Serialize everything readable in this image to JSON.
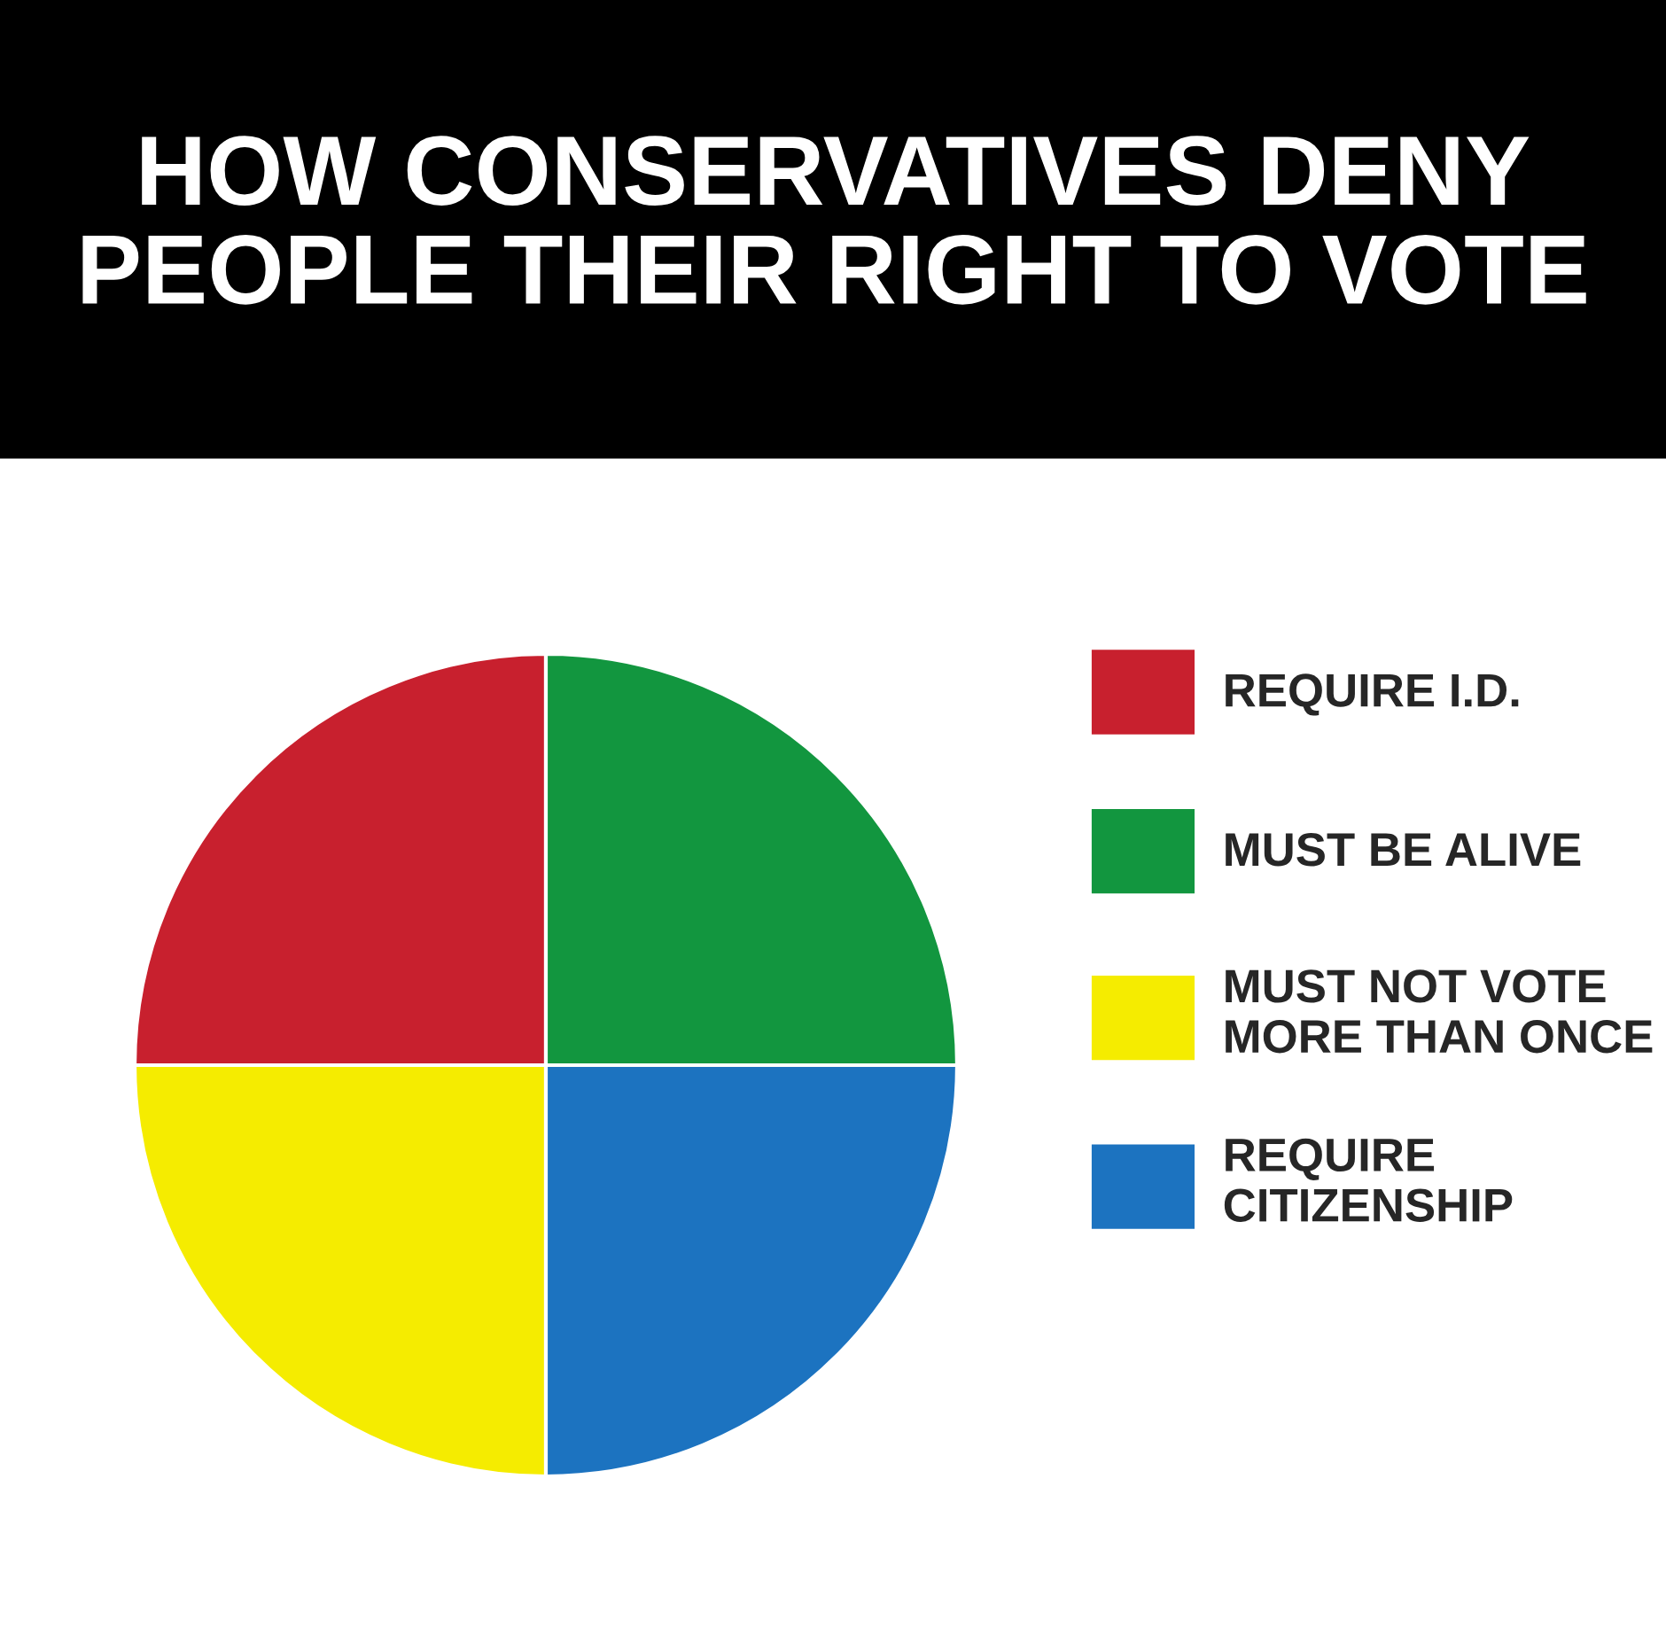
{
  "chart_data": {
    "type": "pie",
    "title": "HOW CONSERVATIVES DENY\nPEOPLE THEIR RIGHT TO VOTE",
    "categories": [
      "REQUIRE I.D.",
      "MUST NOT VOTE\nMORE THAN ONCE",
      "REQUIRE\nCITIZENSHIP",
      "MUST BE ALIVE"
    ],
    "values": [
      25,
      25,
      25,
      25
    ],
    "colors": [
      "#c8202e",
      "#f5ec00",
      "#1c73c0",
      "#12963f"
    ],
    "legend": "right"
  }
}
